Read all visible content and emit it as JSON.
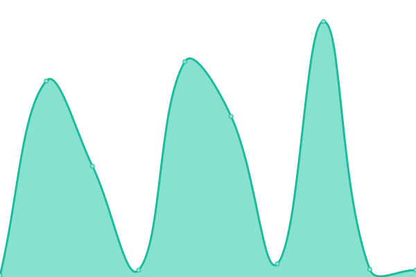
{
  "chart_data": {
    "type": "area",
    "x": [
      0,
      1,
      2,
      3,
      4,
      5,
      6,
      7,
      8,
      9
    ],
    "values": [
      2,
      283,
      160,
      10,
      311,
      232,
      19,
      369,
      11,
      10
    ],
    "ylim": [
      0,
      400
    ],
    "grid": false,
    "legend": "none",
    "colors": {
      "line": "#1abc9c",
      "fill": "#88e0cf",
      "point_fill": "#88e0cf"
    }
  }
}
